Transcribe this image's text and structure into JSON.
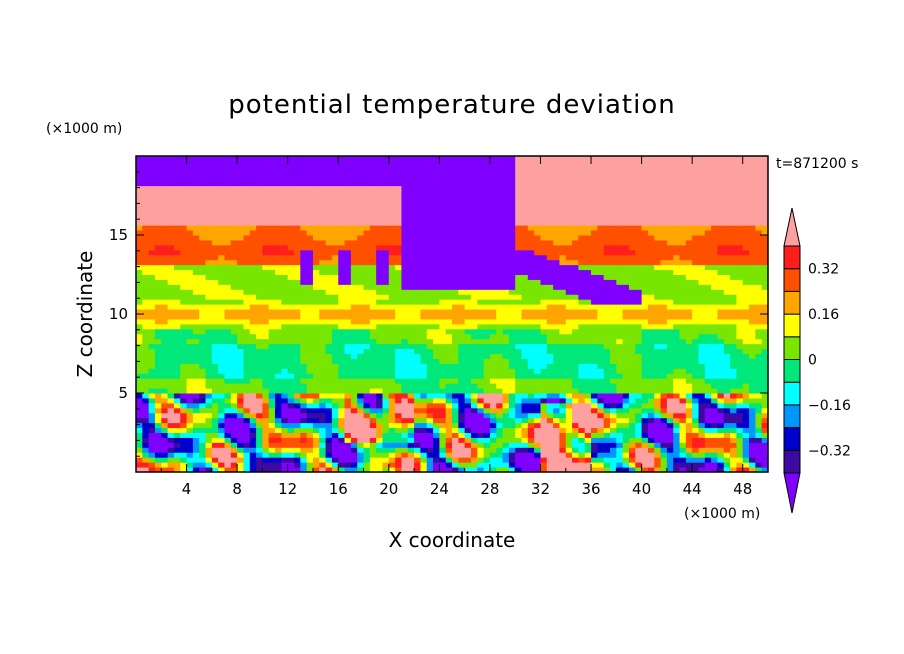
{
  "chart_data": {
    "type": "heatmap",
    "title": "potential temperature deviation",
    "xlabel": "X coordinate",
    "ylabel": "Z coordinate",
    "x_unit": "(×1000 m)",
    "y_unit": "(×1000 m)",
    "time_label": "t=871200 s",
    "xlim": [
      0,
      50
    ],
    "ylim": [
      0,
      20
    ],
    "x_ticks": [
      "4",
      "8",
      "12",
      "16",
      "20",
      "24",
      "28",
      "32",
      "36",
      "40",
      "44",
      "48"
    ],
    "y_ticks": [
      "5",
      "10",
      "15"
    ],
    "colorbar": {
      "levels": [
        -0.4,
        -0.32,
        -0.24,
        -0.16,
        -0.08,
        0,
        0.08,
        0.16,
        0.24,
        0.32,
        0.4
      ],
      "colors": [
        "#8000ff",
        "#3c0aa0",
        "#0000cd",
        "#0096ff",
        "#00ffff",
        "#00e87a",
        "#78e600",
        "#ffff00",
        "#ffa500",
        "#ff5000",
        "#ff1e1e",
        "#ffa0a0"
      ],
      "tick_labels": [
        "-0.32",
        "-0.16",
        "0",
        "0.16",
        "0.32"
      ]
    }
  }
}
